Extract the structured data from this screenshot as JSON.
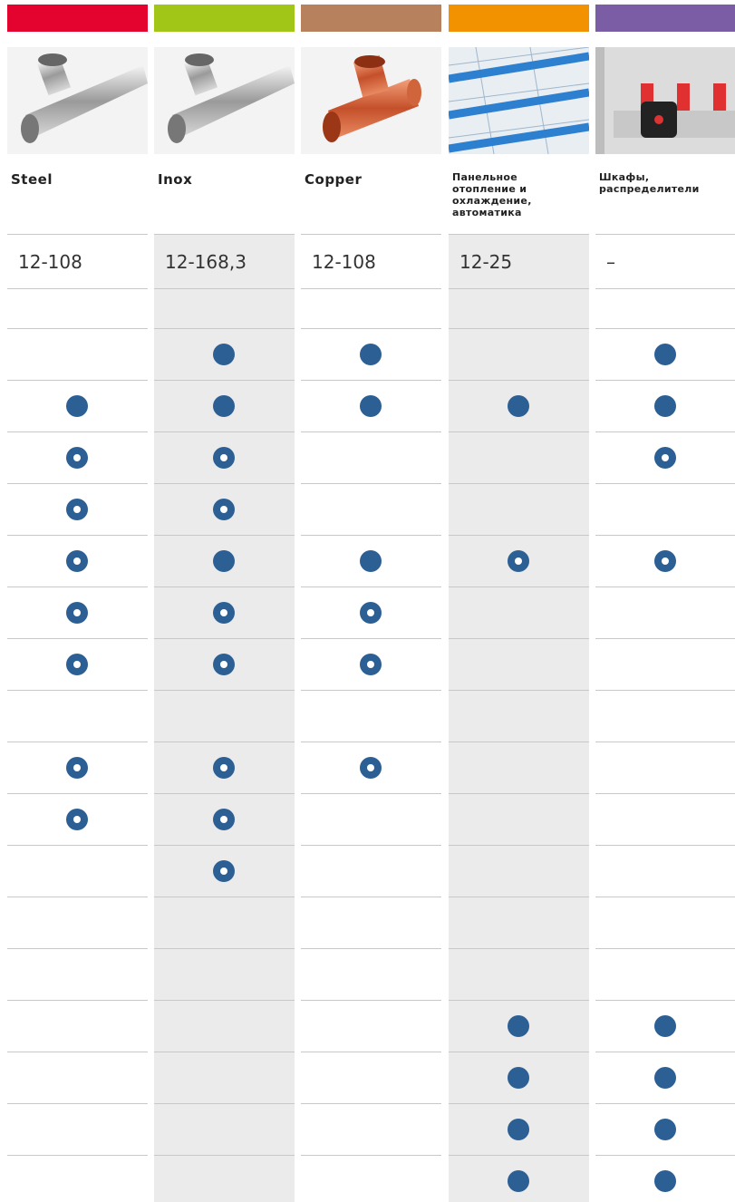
{
  "columns": [
    {
      "name": "Steel",
      "color": "#e4032e",
      "range": "12-108",
      "shaded": false
    },
    {
      "name": "Inox",
      "color": "#a2c617",
      "range": "12-168,3",
      "shaded": true
    },
    {
      "name": "Copper",
      "color": "#b8815e",
      "range": "12-108",
      "shaded": false
    },
    {
      "name": "Панельное отопление и охлаждение, автоматика",
      "color": "#f39200",
      "range": "12-25",
      "shaded": true
    },
    {
      "name": "Шкафы, распределители",
      "color": "#7b5da6",
      "range": "–",
      "shaded": false
    }
  ],
  "rows": [
    [
      null,
      null,
      null,
      null,
      null
    ],
    [
      null,
      "full",
      "full",
      null,
      "full"
    ],
    [
      "full",
      "full",
      "full",
      "full",
      "full"
    ],
    [
      "ring",
      "ring",
      null,
      null,
      "ring"
    ],
    [
      "ring",
      "ring",
      null,
      null,
      null
    ],
    [
      "ring",
      "full",
      "full",
      "ring",
      "ring"
    ],
    [
      "ring",
      "ring",
      "ring",
      null,
      null
    ],
    [
      "ring",
      "ring",
      "ring",
      null,
      null
    ],
    [
      null,
      null,
      null,
      null,
      null
    ],
    [
      "ring",
      "ring",
      "ring",
      null,
      null
    ],
    [
      "ring",
      "ring",
      null,
      null,
      null
    ],
    [
      null,
      "ring",
      null,
      null,
      null
    ],
    [
      null,
      null,
      null,
      null,
      null
    ],
    [
      null,
      null,
      null,
      null,
      null
    ],
    [
      null,
      null,
      null,
      "full",
      "full"
    ],
    [
      null,
      null,
      null,
      "full",
      "full"
    ],
    [
      null,
      null,
      null,
      "full",
      "full"
    ],
    [
      null,
      null,
      null,
      "full",
      "full"
    ]
  ]
}
